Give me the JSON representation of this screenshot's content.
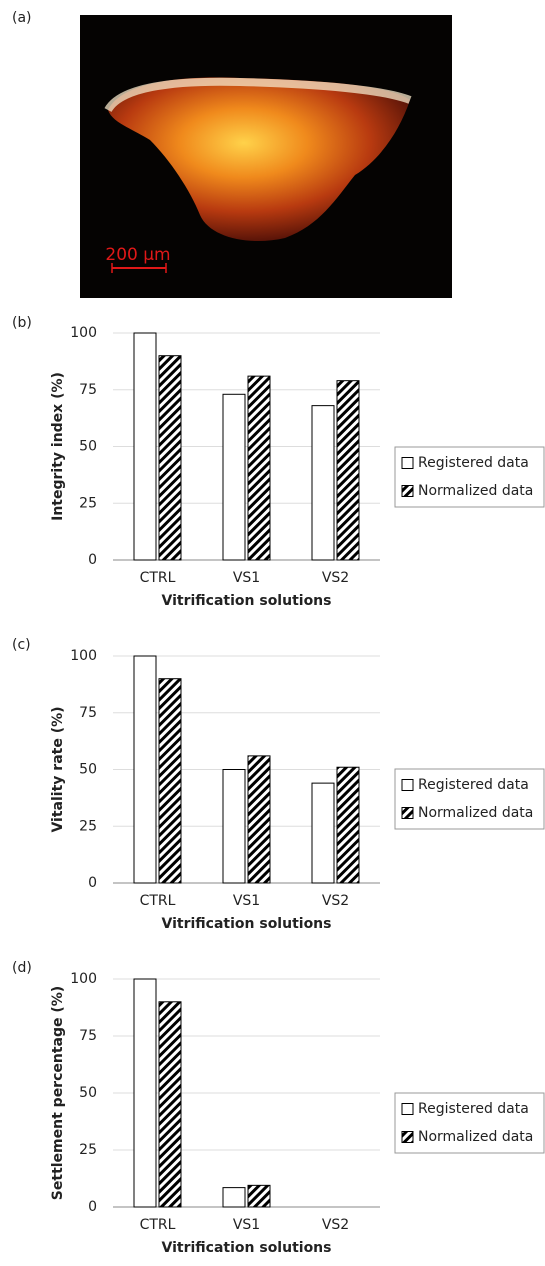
{
  "panel_labels": [
    "(a)",
    "(b)",
    "(c)",
    "(d)"
  ],
  "photo": {
    "scale_bar": "200 μm"
  },
  "chart_data": [
    {
      "type": "bar",
      "y_label": "Integrity index (%)",
      "x_label": "Vitrification solutions",
      "categories": [
        "CTRL",
        "VS1",
        "VS2"
      ],
      "series": [
        {
          "name": "Registered data",
          "color": "#ffffff",
          "values": [
            100,
            73,
            68
          ]
        },
        {
          "name": "Normalized data",
          "color": "#000000",
          "hatch": true,
          "values": [
            90,
            81,
            79
          ]
        }
      ],
      "ylim": [
        0,
        100
      ],
      "yticks": [
        0,
        25,
        50,
        75,
        100
      ],
      "grid": true,
      "legend": "right"
    },
    {
      "type": "bar",
      "y_label": "Vitality rate (%)",
      "x_label": "Vitrification solutions",
      "categories": [
        "CTRL",
        "VS1",
        "VS2"
      ],
      "series": [
        {
          "name": "Registered data",
          "color": "#ffffff",
          "values": [
            100,
            50,
            44
          ]
        },
        {
          "name": "Normalized data",
          "color": "#000000",
          "hatch": true,
          "values": [
            90,
            56,
            51
          ]
        }
      ],
      "ylim": [
        0,
        100
      ],
      "yticks": [
        0,
        25,
        50,
        75,
        100
      ],
      "grid": true,
      "legend": "right"
    },
    {
      "type": "bar",
      "y_label": "Settlement percentage (%)",
      "x_label": "Vitrification solutions",
      "categories": [
        "CTRL",
        "VS1",
        "VS2"
      ],
      "series": [
        {
          "name": "Registered data",
          "color": "#ffffff",
          "values": [
            100,
            8.5,
            0
          ]
        },
        {
          "name": "Normalized data",
          "color": "#000000",
          "hatch": true,
          "values": [
            90,
            9.5,
            0
          ]
        }
      ],
      "ylim": [
        0,
        100
      ],
      "yticks": [
        0,
        25,
        50,
        75,
        100
      ],
      "grid": true,
      "legend": "right"
    }
  ]
}
